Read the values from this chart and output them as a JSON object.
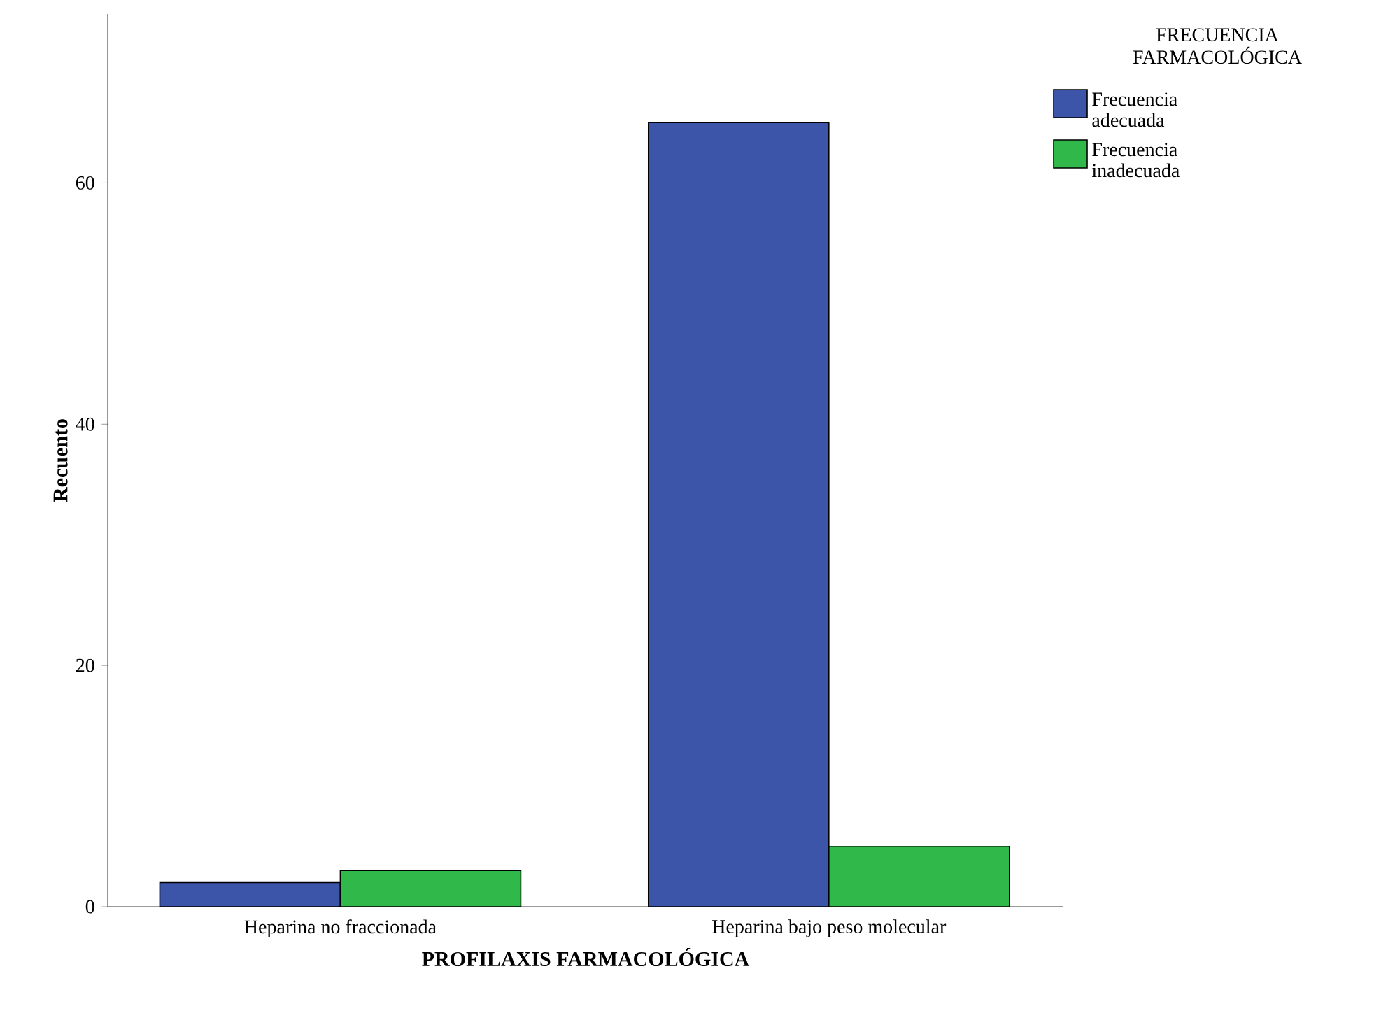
{
  "chart_data": {
    "type": "bar",
    "xlabel": "PROFILAXIS FARMACOLÓGICA",
    "ylabel": "Recuento",
    "legend_title": "FRECUENCIA FARMACOLÓGICA",
    "categories": [
      "Heparina no fraccionada",
      "Heparina bajo peso molecular"
    ],
    "series": [
      {
        "name": "Frecuencia adecuada",
        "color": "#3d55a8",
        "values": [
          2,
          65
        ]
      },
      {
        "name": "Frecuencia inadecuada",
        "color": "#30b84b",
        "values": [
          3,
          5
        ]
      }
    ],
    "ylim": [
      0,
      74
    ],
    "yticks": [
      0,
      20,
      40,
      60
    ],
    "grid": false,
    "legend": "top right"
  }
}
